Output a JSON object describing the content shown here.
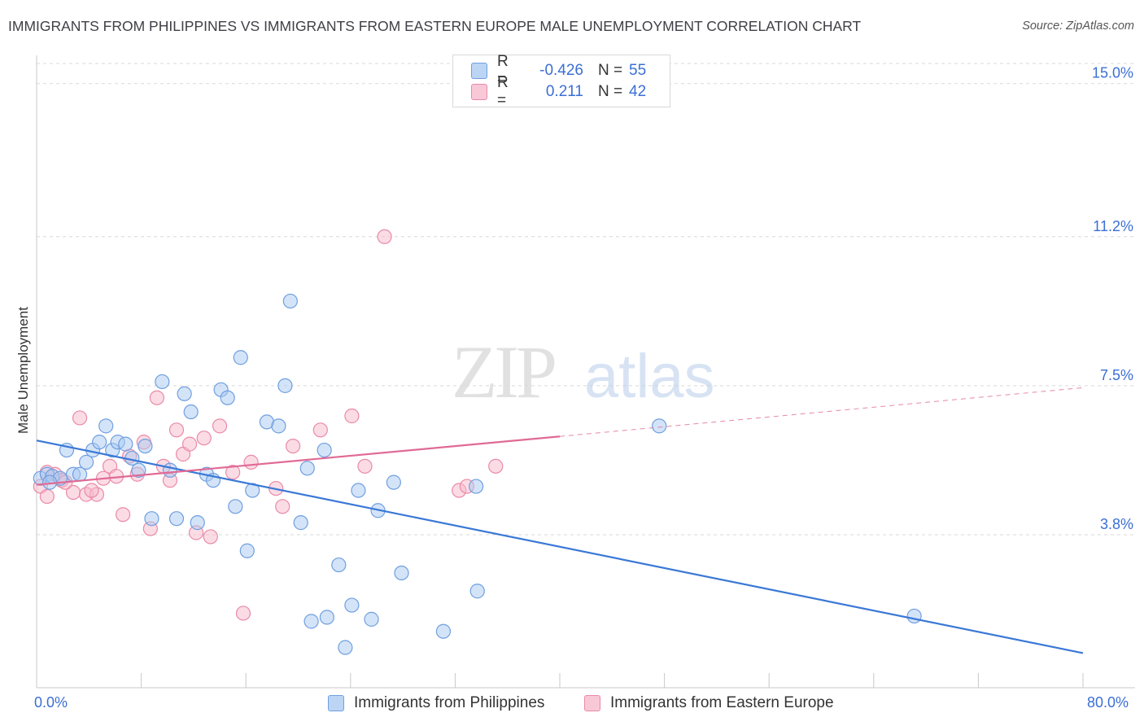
{
  "title": "IMMIGRANTS FROM PHILIPPINES VS IMMIGRANTS FROM EASTERN EUROPE MALE UNEMPLOYMENT CORRELATION CHART",
  "source": "Source: ZipAtlas.com",
  "watermark": {
    "zip": "ZIP",
    "atlas": "atlas"
  },
  "legend": {
    "r_label": "R =",
    "n_label": "N =",
    "rows": [
      {
        "r": "-0.426",
        "n": "55"
      },
      {
        "r": "0.211",
        "n": "42"
      }
    ]
  },
  "colors": {
    "blue_fill": "#a9c9f2",
    "blue_stroke": "#6f9fe0",
    "blue_line": "#3a78d6",
    "pink_fill": "#f7b9cb",
    "pink_stroke": "#ea8aa8",
    "pink_line": "#e06a95",
    "grid": "#d9d9d9",
    "axis_text": "#3b6fd4"
  },
  "chart_data": {
    "type": "scatter",
    "title": "IMMIGRANTS FROM PHILIPPINES VS IMMIGRANTS FROM EASTERN EUROPE MALE UNEMPLOYMENT CORRELATION CHART",
    "xlabel": "",
    "ylabel": "Male Unemployment",
    "xlim": [
      0,
      80
    ],
    "ylim": [
      0,
      15.5
    ],
    "x_tick_labels": [
      "0.0%",
      "80.0%"
    ],
    "y_ticks": [
      3.8,
      7.5,
      11.2,
      15.0
    ],
    "y_tick_labels": [
      "3.8%",
      "7.5%",
      "11.2%",
      "15.0%"
    ],
    "grid": "horizontal dashed",
    "legend_position": "bottom",
    "series": [
      {
        "name": "Immigrants from Philippines",
        "color": "blue",
        "trend": {
          "x": [
            0,
            80
          ],
          "y": [
            6.14,
            0.86
          ]
        },
        "points": [
          [
            0.3,
            5.2
          ],
          [
            0.8,
            5.3
          ],
          [
            1.2,
            5.25
          ],
          [
            1.8,
            5.2
          ],
          [
            2.3,
            5.9
          ],
          [
            2.8,
            5.3
          ],
          [
            3.3,
            5.3
          ],
          [
            3.8,
            5.6
          ],
          [
            4.3,
            5.9
          ],
          [
            4.8,
            6.1
          ],
          [
            5.3,
            6.5
          ],
          [
            5.8,
            5.9
          ],
          [
            6.2,
            6.1
          ],
          [
            6.8,
            6.05
          ],
          [
            7.3,
            5.7
          ],
          [
            7.8,
            5.4
          ],
          [
            8.3,
            6.0
          ],
          [
            8.8,
            4.2
          ],
          [
            9.6,
            7.6
          ],
          [
            10.2,
            5.4
          ],
          [
            10.7,
            4.2
          ],
          [
            11.3,
            7.3
          ],
          [
            11.8,
            6.85
          ],
          [
            12.3,
            4.1
          ],
          [
            13.0,
            5.3
          ],
          [
            13.5,
            5.15
          ],
          [
            14.1,
            7.4
          ],
          [
            14.6,
            7.2
          ],
          [
            15.2,
            4.5
          ],
          [
            15.6,
            8.2
          ],
          [
            16.1,
            3.4
          ],
          [
            16.5,
            4.9
          ],
          [
            17.6,
            6.6
          ],
          [
            18.5,
            6.5
          ],
          [
            19.0,
            7.5
          ],
          [
            19.4,
            9.6
          ],
          [
            20.2,
            4.1
          ],
          [
            20.7,
            5.45
          ],
          [
            21.0,
            1.65
          ],
          [
            22.0,
            5.9
          ],
          [
            22.2,
            1.75
          ],
          [
            23.1,
            3.05
          ],
          [
            23.6,
            1.0
          ],
          [
            24.1,
            2.05
          ],
          [
            24.6,
            4.9
          ],
          [
            25.6,
            1.7
          ],
          [
            26.1,
            4.4
          ],
          [
            27.3,
            5.1
          ],
          [
            27.9,
            2.85
          ],
          [
            31.1,
            1.4
          ],
          [
            33.6,
            5.0
          ],
          [
            33.7,
            2.4
          ],
          [
            47.6,
            6.5
          ],
          [
            67.1,
            1.78
          ],
          [
            1.0,
            5.1
          ]
        ]
      },
      {
        "name": "Immigrants from Eastern Europe",
        "color": "pink",
        "trend": {
          "x": [
            0,
            40
          ],
          "y": [
            5.04,
            6.24
          ]
        },
        "trend_extension": {
          "x": [
            40,
            80
          ],
          "y": [
            6.24,
            7.45
          ]
        },
        "points": [
          [
            0.3,
            5.0
          ],
          [
            0.8,
            4.75
          ],
          [
            1.4,
            5.3
          ],
          [
            1.9,
            5.15
          ],
          [
            2.8,
            4.85
          ],
          [
            3.3,
            6.7
          ],
          [
            3.8,
            4.8
          ],
          [
            4.6,
            4.8
          ],
          [
            5.1,
            5.2
          ],
          [
            5.6,
            5.5
          ],
          [
            6.1,
            5.25
          ],
          [
            6.6,
            4.3
          ],
          [
            7.1,
            5.75
          ],
          [
            7.7,
            5.3
          ],
          [
            8.2,
            6.1
          ],
          [
            8.7,
            3.95
          ],
          [
            9.2,
            7.2
          ],
          [
            9.7,
            5.5
          ],
          [
            10.2,
            5.15
          ],
          [
            10.7,
            6.4
          ],
          [
            11.2,
            5.8
          ],
          [
            11.7,
            6.05
          ],
          [
            12.2,
            3.85
          ],
          [
            12.8,
            6.2
          ],
          [
            13.3,
            3.75
          ],
          [
            14.0,
            6.5
          ],
          [
            15.0,
            5.35
          ],
          [
            15.8,
            1.85
          ],
          [
            16.4,
            5.6
          ],
          [
            18.3,
            4.95
          ],
          [
            18.8,
            4.5
          ],
          [
            19.6,
            6.0
          ],
          [
            21.7,
            6.4
          ],
          [
            24.1,
            6.75
          ],
          [
            25.1,
            5.5
          ],
          [
            26.6,
            11.2
          ],
          [
            32.3,
            4.9
          ],
          [
            32.9,
            5.0
          ],
          [
            35.1,
            5.5
          ],
          [
            0.8,
            5.35
          ],
          [
            2.2,
            5.1
          ],
          [
            4.2,
            4.9
          ]
        ]
      }
    ]
  },
  "bottom_legend": [
    {
      "label": "Immigrants from Philippines"
    },
    {
      "label": "Immigrants from Eastern Europe"
    }
  ]
}
